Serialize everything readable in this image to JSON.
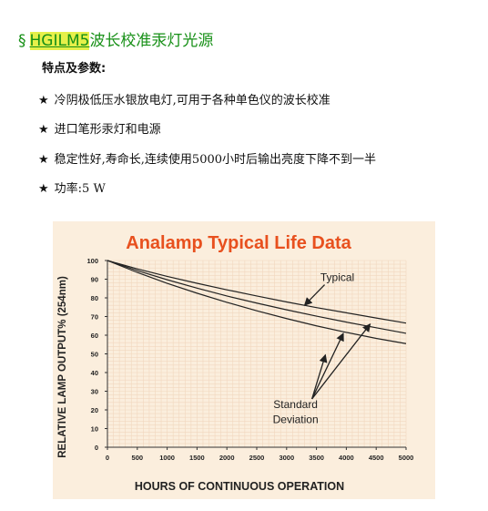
{
  "header": {
    "section_mark": "§",
    "model_code": "HGILM5",
    "title_rest": "波长校准汞灯光源",
    "subhead": "特点及参数:"
  },
  "features": [
    {
      "star": "★",
      "text": "冷阴极低压水银放电灯,可用于各种单色仪的波长校准"
    },
    {
      "star": "★",
      "text": "进口笔形汞灯和电源"
    },
    {
      "star": "★",
      "text": "稳定性好,寿命长,连续使用5000小时后输出亮度下降不到一半"
    },
    {
      "star": "★",
      "text": "功率:5 W"
    }
  ],
  "chart_data": {
    "type": "line",
    "title": "Analamp Typical Life Data",
    "xlabel": "HOURS OF CONTINUOUS OPERATION",
    "ylabel": "RELATIVE LAMP OUTPUT% (254nm)",
    "xlim": [
      0,
      5000
    ],
    "ylim": [
      0,
      100
    ],
    "x_ticks": [
      0,
      500,
      1000,
      1500,
      2000,
      2500,
      3000,
      3500,
      4000,
      4500,
      5000
    ],
    "y_ticks": [
      0,
      10,
      20,
      30,
      40,
      50,
      60,
      70,
      80,
      90,
      100
    ],
    "grid": true,
    "background": "#fbeedd",
    "line_color": "#222222",
    "title_color": "#e8501e",
    "x": [
      0,
      500,
      1000,
      1500,
      2000,
      2500,
      3000,
      3500,
      4000,
      4500,
      5000
    ],
    "series": [
      {
        "values": [
          100,
          95.5,
          91.5,
          87.8,
          84.3,
          81,
          77.8,
          74.8,
          72,
          69.2,
          66.5
        ]
      },
      {
        "values": [
          100,
          94.6,
          89.7,
          85.2,
          81,
          77.2,
          73.6,
          70.2,
          67,
          64,
          61
        ]
      },
      {
        "values": [
          100,
          93.6,
          87.8,
          82.5,
          77.6,
          73.1,
          68.9,
          65,
          61.5,
          58.3,
          55.5
        ]
      }
    ],
    "annotations": [
      {
        "text": "Typical",
        "x": 3850,
        "y": 89,
        "arrow_to": [
          3300,
          76
        ]
      },
      {
        "text": "Standard",
        "x": 3150,
        "y": 21,
        "arrow_to": [
          [
            3650,
            49.5
          ],
          [
            3950,
            61
          ],
          [
            4400,
            66
          ]
        ]
      },
      {
        "text": "Deviation",
        "x": 3150,
        "y": 13
      }
    ]
  }
}
